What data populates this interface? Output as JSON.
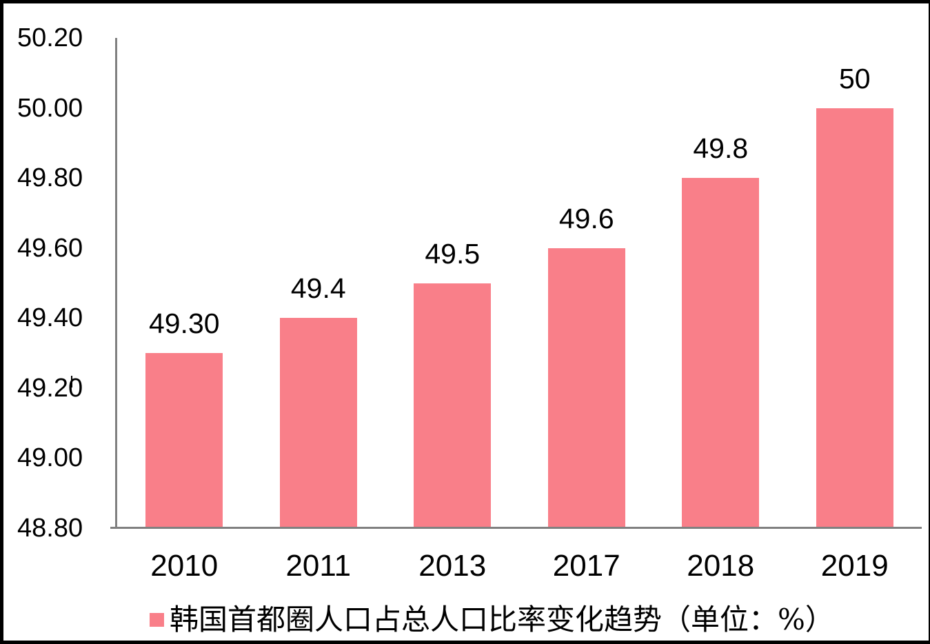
{
  "chart_data": {
    "type": "bar",
    "title": "",
    "categories": [
      "2010",
      "2011",
      "2013",
      "2017",
      "2018",
      "2019"
    ],
    "values": [
      49.3,
      49.4,
      49.5,
      49.6,
      49.8,
      50.0
    ],
    "data_labels": [
      "49.30",
      "49.4",
      "49.5",
      "49.6",
      "49.8",
      "50"
    ],
    "y_ticks": [
      "50.20",
      "50.00",
      "49.80",
      "49.60",
      "49.40",
      "49.20",
      "49.00",
      "48.80"
    ],
    "ylim": [
      48.8,
      50.2
    ],
    "xlabel": "",
    "ylabel": "",
    "grid": false,
    "legend_position": "bottom",
    "legend": "韩国首都圈人口占总人口比率变化趋势（单位：%）",
    "colors": {
      "bar": "#F97F89",
      "axis": "#808080",
      "text": "#000000",
      "frame": "#000000"
    }
  }
}
